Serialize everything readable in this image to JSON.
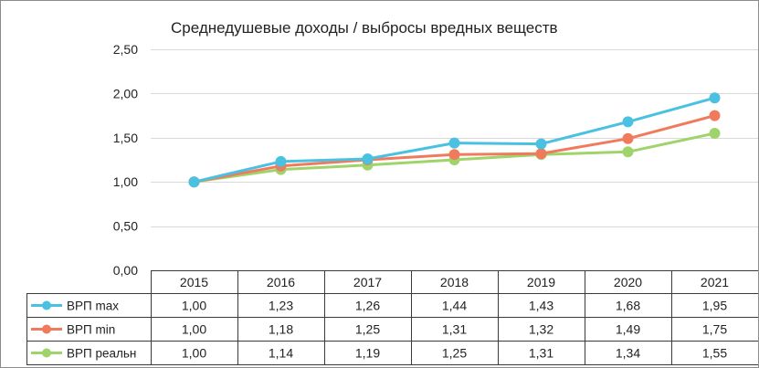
{
  "chart_data": {
    "type": "line",
    "title": "Среднедушевые доходы / выбросы вредных веществ",
    "categories": [
      "2015",
      "2016",
      "2017",
      "2018",
      "2019",
      "2020",
      "2021"
    ],
    "ylim": [
      0,
      2.5
    ],
    "yticks": [
      "0,00",
      "0,50",
      "1,00",
      "1,50",
      "2,00",
      "2,50"
    ],
    "ytick_values": [
      0,
      0.5,
      1,
      1.5,
      2,
      2.5
    ],
    "grid": true,
    "legend_placement": "data-table-left",
    "series": [
      {
        "name": "ВРП max",
        "color": "#4BC1E2",
        "values": [
          1.0,
          1.23,
          1.26,
          1.44,
          1.43,
          1.68,
          1.95
        ],
        "labels": [
          "1,00",
          "1,23",
          "1,26",
          "1,44",
          "1,43",
          "1,68",
          "1,95"
        ]
      },
      {
        "name": "ВРП min",
        "color": "#F07B5C",
        "values": [
          1.0,
          1.18,
          1.25,
          1.31,
          1.32,
          1.49,
          1.75
        ],
        "labels": [
          "1,00",
          "1,18",
          "1,25",
          "1,31",
          "1,32",
          "1,49",
          "1,75"
        ]
      },
      {
        "name": "ВРП реальн",
        "color": "#9FD46B",
        "values": [
          1.0,
          1.14,
          1.19,
          1.25,
          1.31,
          1.34,
          1.55
        ],
        "labels": [
          "1,00",
          "1,14",
          "1,19",
          "1,25",
          "1,31",
          "1,34",
          "1,55"
        ]
      }
    ]
  }
}
